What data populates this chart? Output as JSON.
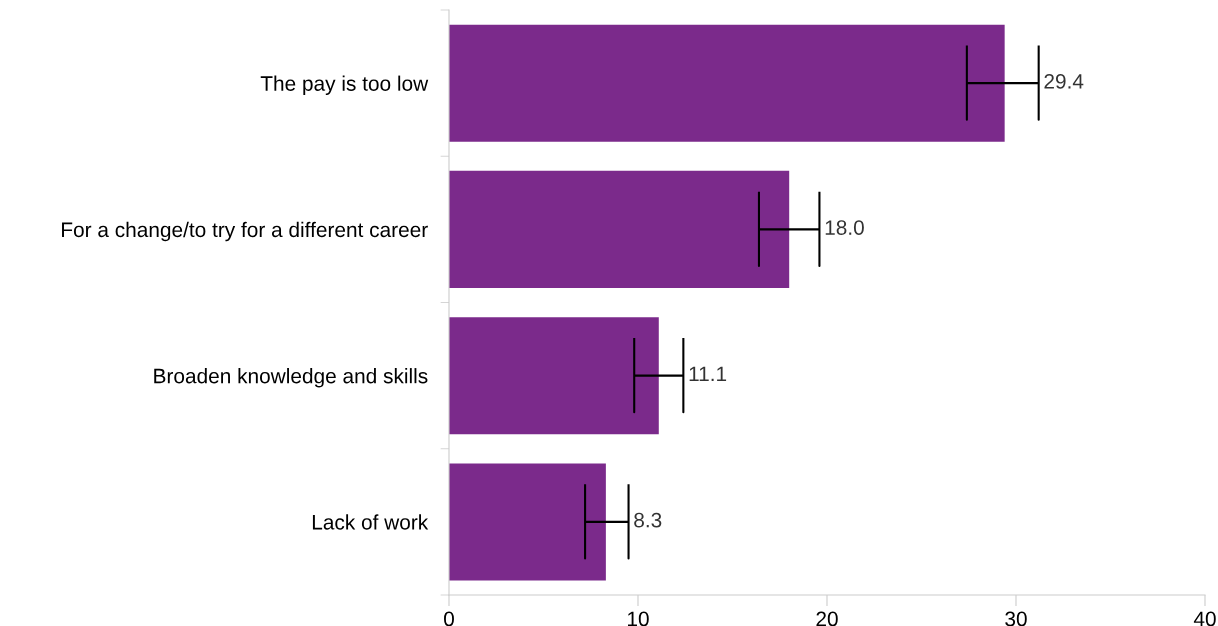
{
  "chart_data": {
    "type": "bar",
    "orientation": "horizontal",
    "categories": [
      "The pay is too low",
      "For a change/to try for a different career",
      "Broaden knowledge and skills",
      "Lack of work"
    ],
    "values": [
      29.4,
      18.0,
      11.1,
      8.3
    ],
    "errors": [
      [
        27.4,
        31.2
      ],
      [
        16.4,
        19.6
      ],
      [
        9.8,
        12.4
      ],
      [
        7.2,
        9.5
      ]
    ],
    "value_labels": [
      "29.4",
      "18.0",
      "11.1",
      "8.3"
    ],
    "color": "#7b2a8b",
    "xlim": [
      0,
      40
    ],
    "xticks": [
      0,
      10,
      20,
      30,
      40
    ],
    "grid": false
  }
}
